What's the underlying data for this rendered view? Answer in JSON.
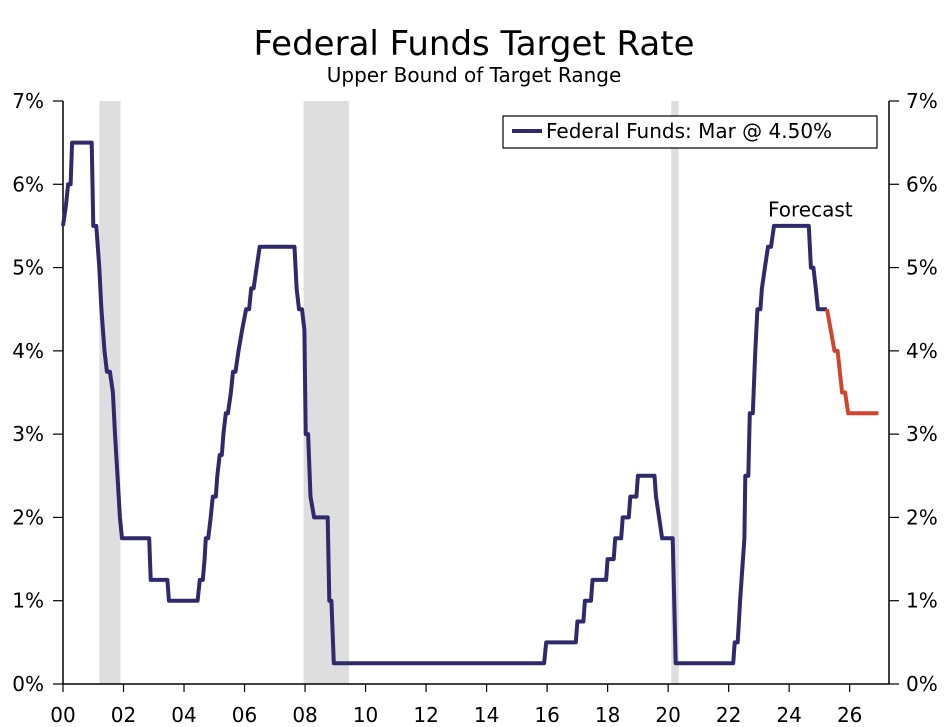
{
  "chart_data": {
    "type": "line",
    "title": "Federal Funds Target Rate",
    "subtitle": "Upper Bound of Target Range",
    "xlabel": "",
    "ylabel": "",
    "xlim": [
      2000,
      2027.3
    ],
    "ylim": [
      0,
      7
    ],
    "x_ticks": [
      2000,
      2002,
      2004,
      2006,
      2008,
      2010,
      2012,
      2014,
      2016,
      2018,
      2020,
      2022,
      2024,
      2026
    ],
    "x_tick_labels": [
      "00",
      "02",
      "04",
      "06",
      "08",
      "10",
      "12",
      "14",
      "16",
      "18",
      "20",
      "22",
      "24",
      "26"
    ],
    "y_ticks": [
      0,
      1,
      2,
      3,
      4,
      5,
      6,
      7
    ],
    "y_tick_labels": [
      "0%",
      "1%",
      "2%",
      "3%",
      "4%",
      "5%",
      "6%",
      "7%"
    ],
    "recessions": [
      [
        2001.2,
        2001.9
      ],
      [
        2007.95,
        2009.45
      ],
      [
        2020.1,
        2020.35
      ]
    ],
    "legend": {
      "label": "Federal Funds: Mar @ 4.50%",
      "position": "top-right"
    },
    "annotation": {
      "text": "Forecast",
      "x": 2024.7,
      "y": 5.7
    },
    "colors": {
      "actual": "#2e2a6b",
      "forecast": "#d0452c",
      "recession": "#dedede"
    },
    "series": [
      {
        "name": "Federal Funds",
        "points": [
          [
            2000.0,
            5.5
          ],
          [
            2000.1,
            5.75
          ],
          [
            2000.17,
            6.0
          ],
          [
            2000.25,
            6.0
          ],
          [
            2000.3,
            6.5
          ],
          [
            2000.95,
            6.5
          ],
          [
            2001.0,
            5.5
          ],
          [
            2001.1,
            5.5
          ],
          [
            2001.2,
            5.0
          ],
          [
            2001.27,
            4.5
          ],
          [
            2001.37,
            4.0
          ],
          [
            2001.45,
            3.75
          ],
          [
            2001.55,
            3.75
          ],
          [
            2001.65,
            3.5
          ],
          [
            2001.72,
            3.0
          ],
          [
            2001.8,
            2.5
          ],
          [
            2001.88,
            2.0
          ],
          [
            2001.95,
            1.75
          ],
          [
            2002.85,
            1.75
          ],
          [
            2002.9,
            1.25
          ],
          [
            2003.45,
            1.25
          ],
          [
            2003.5,
            1.0
          ],
          [
            2004.45,
            1.0
          ],
          [
            2004.52,
            1.25
          ],
          [
            2004.62,
            1.25
          ],
          [
            2004.68,
            1.5
          ],
          [
            2004.72,
            1.75
          ],
          [
            2004.8,
            1.75
          ],
          [
            2004.88,
            2.0
          ],
          [
            2004.95,
            2.25
          ],
          [
            2005.05,
            2.25
          ],
          [
            2005.1,
            2.5
          ],
          [
            2005.18,
            2.75
          ],
          [
            2005.25,
            2.75
          ],
          [
            2005.3,
            3.0
          ],
          [
            2005.38,
            3.25
          ],
          [
            2005.45,
            3.25
          ],
          [
            2005.55,
            3.5
          ],
          [
            2005.62,
            3.75
          ],
          [
            2005.7,
            3.75
          ],
          [
            2005.8,
            4.0
          ],
          [
            2005.92,
            4.25
          ],
          [
            2006.05,
            4.5
          ],
          [
            2006.15,
            4.5
          ],
          [
            2006.22,
            4.75
          ],
          [
            2006.3,
            4.75
          ],
          [
            2006.4,
            5.0
          ],
          [
            2006.5,
            5.25
          ],
          [
            2007.65,
            5.25
          ],
          [
            2007.72,
            4.75
          ],
          [
            2007.8,
            4.5
          ],
          [
            2007.9,
            4.5
          ],
          [
            2007.98,
            4.25
          ],
          [
            2008.02,
            3.0
          ],
          [
            2008.1,
            3.0
          ],
          [
            2008.18,
            2.25
          ],
          [
            2008.3,
            2.0
          ],
          [
            2008.75,
            2.0
          ],
          [
            2008.8,
            1.0
          ],
          [
            2008.87,
            1.0
          ],
          [
            2008.95,
            0.25
          ],
          [
            2015.9,
            0.25
          ],
          [
            2015.97,
            0.5
          ],
          [
            2016.95,
            0.5
          ],
          [
            2017.0,
            0.75
          ],
          [
            2017.2,
            0.75
          ],
          [
            2017.25,
            1.0
          ],
          [
            2017.45,
            1.0
          ],
          [
            2017.5,
            1.25
          ],
          [
            2017.95,
            1.25
          ],
          [
            2018.0,
            1.5
          ],
          [
            2018.2,
            1.5
          ],
          [
            2018.25,
            1.75
          ],
          [
            2018.45,
            1.75
          ],
          [
            2018.5,
            2.0
          ],
          [
            2018.7,
            2.0
          ],
          [
            2018.75,
            2.25
          ],
          [
            2018.95,
            2.25
          ],
          [
            2019.0,
            2.5
          ],
          [
            2019.55,
            2.5
          ],
          [
            2019.6,
            2.25
          ],
          [
            2019.7,
            2.0
          ],
          [
            2019.8,
            1.75
          ],
          [
            2020.15,
            1.75
          ],
          [
            2020.2,
            1.0
          ],
          [
            2020.25,
            0.25
          ],
          [
            2022.15,
            0.25
          ],
          [
            2022.2,
            0.5
          ],
          [
            2022.3,
            0.5
          ],
          [
            2022.38,
            1.0
          ],
          [
            2022.52,
            1.75
          ],
          [
            2022.55,
            2.5
          ],
          [
            2022.65,
            2.5
          ],
          [
            2022.7,
            3.25
          ],
          [
            2022.8,
            3.25
          ],
          [
            2022.88,
            4.0
          ],
          [
            2022.95,
            4.5
          ],
          [
            2023.05,
            4.5
          ],
          [
            2023.1,
            4.75
          ],
          [
            2023.2,
            5.0
          ],
          [
            2023.3,
            5.25
          ],
          [
            2023.4,
            5.25
          ],
          [
            2023.5,
            5.5
          ],
          [
            2024.65,
            5.5
          ],
          [
            2024.72,
            5.0
          ],
          [
            2024.8,
            5.0
          ],
          [
            2024.88,
            4.75
          ],
          [
            2024.95,
            4.5
          ],
          [
            2025.25,
            4.5
          ]
        ]
      },
      {
        "name": "Forecast",
        "points": [
          [
            2025.25,
            4.5
          ],
          [
            2025.5,
            4.0
          ],
          [
            2025.6,
            4.0
          ],
          [
            2025.75,
            3.5
          ],
          [
            2025.85,
            3.5
          ],
          [
            2025.95,
            3.25
          ],
          [
            2026.95,
            3.25
          ]
        ]
      }
    ]
  }
}
